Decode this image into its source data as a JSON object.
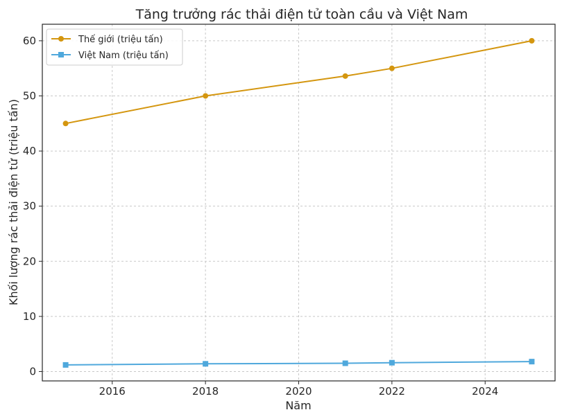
{
  "chart_data": {
    "type": "line",
    "title": "Tăng trưởng rác thải điện tử toàn cầu và Việt Nam",
    "xlabel": "Năm",
    "ylabel": "Khối lượng rác thải điện tử (triệu tấn)",
    "xlim": [
      2014.5,
      2025.5
    ],
    "ylim": [
      -1.7,
      63
    ],
    "xticks": [
      2016,
      2018,
      2020,
      2022,
      2024
    ],
    "yticks": [
      0,
      10,
      20,
      30,
      40,
      50,
      60
    ],
    "grid": true,
    "legend_position": "top-left",
    "series": [
      {
        "name": "Thế giới (triệu tấn)",
        "color": "#d4960f",
        "marker": "circle",
        "x": [
          2015,
          2018,
          2021,
          2022,
          2025
        ],
        "y": [
          45,
          50,
          53.6,
          55,
          60
        ]
      },
      {
        "name": "Việt Nam (triệu tấn)",
        "color": "#4fa8dc",
        "marker": "square",
        "x": [
          2015,
          2018,
          2021,
          2022,
          2025
        ],
        "y": [
          1.2,
          1.4,
          1.5,
          1.6,
          1.8
        ]
      }
    ]
  }
}
